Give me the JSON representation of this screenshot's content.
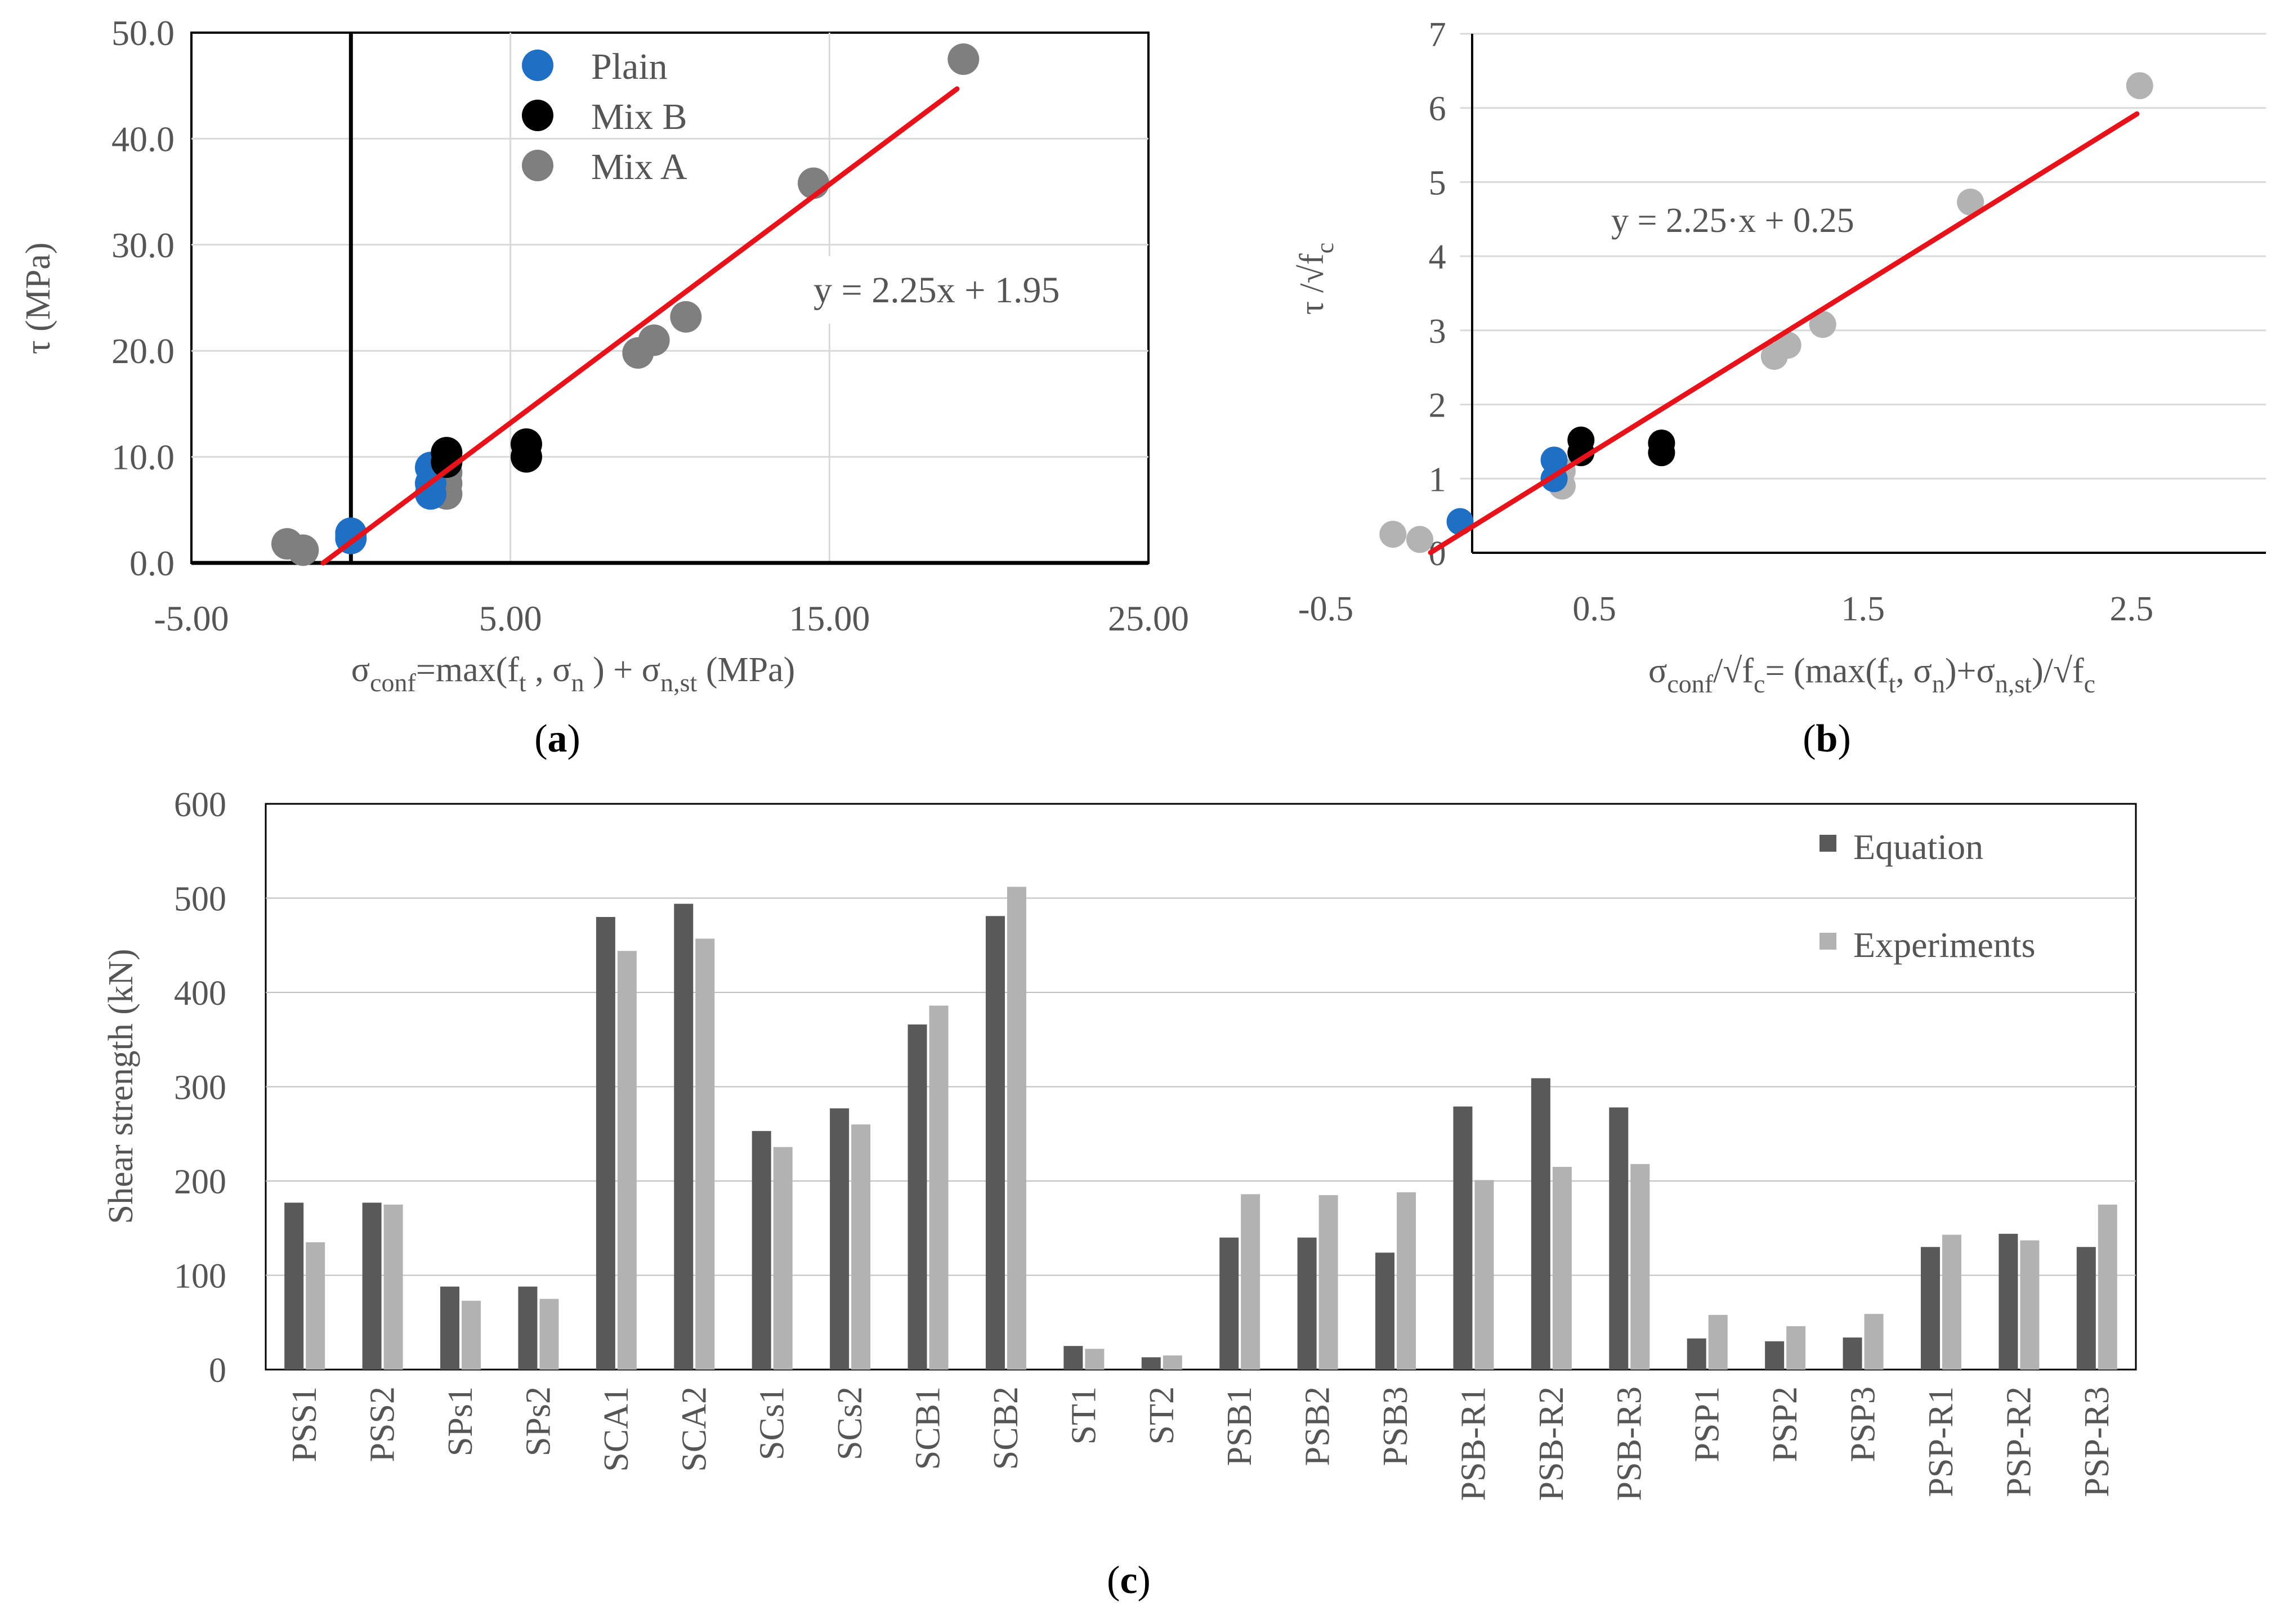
{
  "chart_data": [
    {
      "type": "scatter",
      "panel_label": "a",
      "xlim": [
        -5,
        25
      ],
      "ylim": [
        0,
        50
      ],
      "x_ticks": [
        "-5.00",
        "5.00",
        "15.00",
        "25.00"
      ],
      "y_ticks": [
        "0.0",
        "10.0",
        "20.0",
        "30.0",
        "40.0",
        "50.0"
      ],
      "ylabel": "τ (MPa)",
      "xlabel": {
        "sigma": "σ",
        "conf": "conf",
        "text1": "=max(f",
        "t": "t",
        "text2": " , σ",
        "n": "n",
        "text3": " ) + σ",
        "nst": "n,st",
        "text4": "  (MPa)"
      },
      "grid": true,
      "series": [
        {
          "name": "Plain",
          "color": "#1f6fc5",
          "points": [
            [
              0.0,
              2.8
            ],
            [
              0.0,
              2.3
            ],
            [
              2.5,
              9.0
            ],
            [
              2.5,
              7.5
            ],
            [
              2.5,
              6.5
            ]
          ]
        },
        {
          "name": "Mix B",
          "color": "#000000",
          "points": [
            [
              3.0,
              10.4
            ],
            [
              3.0,
              9.5
            ],
            [
              5.5,
              11.2
            ],
            [
              5.5,
              10.0
            ]
          ]
        },
        {
          "name": "Mix A",
          "color": "#7f7f7f",
          "points": [
            [
              -2.0,
              1.8
            ],
            [
              -1.5,
              1.2
            ],
            [
              3.0,
              8.5
            ],
            [
              3.0,
              7.5
            ],
            [
              3.0,
              6.5
            ],
            [
              9.0,
              19.8
            ],
            [
              9.5,
              21.0
            ],
            [
              10.5,
              23.2
            ],
            [
              14.5,
              35.8
            ],
            [
              19.2,
              47.5
            ]
          ]
        }
      ],
      "fit": {
        "slope": 2.25,
        "intercept": 1.95,
        "x_from": -0.87,
        "x_to": 19.0,
        "color": "#e8121b",
        "label": "y = 2.25x + 1.95"
      }
    },
    {
      "type": "scatter",
      "panel_label": "b",
      "xlim": [
        -0.5,
        3.0
      ],
      "ylim": [
        0,
        7
      ],
      "x_ticks": [
        "-0.5",
        "0.5",
        "1.5",
        "2.5"
      ],
      "y_ticks": [
        "0",
        "1",
        "2",
        "3",
        "4",
        "5",
        "6",
        "7"
      ],
      "ylabel": {
        "main": "τ /√f",
        "sub": "c"
      },
      "xlabel": {
        "sigma": "σ",
        "conf": "conf",
        "text1": "/√f",
        "c1": "c",
        "text2": "= (max(f",
        "t": "t",
        "text3": ", σ",
        "n": "n",
        "text4": ")+σ",
        "nst": "n,st",
        "text5": ")/√f",
        "c2": "c"
      },
      "grid": true,
      "series": [
        {
          "name": "Plain",
          "color": "#1f6fc5",
          "points": [
            [
              0.0,
              0.42
            ],
            [
              0.35,
              1.25
            ],
            [
              0.35,
              1.0
            ]
          ]
        },
        {
          "name": "Mix B",
          "color": "#000000",
          "points": [
            [
              0.45,
              1.52
            ],
            [
              0.45,
              1.35
            ],
            [
              0.75,
              1.48
            ],
            [
              0.75,
              1.35
            ]
          ]
        },
        {
          "name": "Mix A",
          "color": "#b3b3b3",
          "points": [
            [
              -0.25,
              0.25
            ],
            [
              -0.15,
              0.18
            ],
            [
              0.38,
              1.1
            ],
            [
              0.38,
              0.9
            ],
            [
              1.17,
              2.65
            ],
            [
              1.22,
              2.8
            ],
            [
              1.35,
              3.08
            ],
            [
              1.9,
              4.73
            ],
            [
              2.53,
              6.3
            ]
          ]
        }
      ],
      "fit": {
        "slope": 2.25,
        "intercept": 0.25,
        "x_from": -0.11,
        "x_to": 2.52,
        "color": "#e8121b",
        "label": "y = 2.25·x + 0.25"
      }
    },
    {
      "type": "bar",
      "panel_label": "c",
      "categories": [
        "PSS1",
        "PSS2",
        "SPs1",
        "SPs2",
        "SCA1",
        "SCA2",
        "SCs1",
        "SCs2",
        "SCB1",
        "SCB2",
        "ST1",
        "ST2",
        "PSB1",
        "PSB2",
        "PSB3",
        "PSB-R1",
        "PSB-R2",
        "PSB-R3",
        "PSP1",
        "PSP2",
        "PSP3",
        "PSP-R1",
        "PSP-R2",
        "PSP-R3"
      ],
      "ylim": [
        0,
        600
      ],
      "y_ticks": [
        "0",
        "100",
        "200",
        "300",
        "400",
        "500",
        "600"
      ],
      "ylabel": "Shear strength (kN)",
      "xlabel": "",
      "legend_position": "top-right",
      "series": [
        {
          "name": "Equation",
          "color": "#595959",
          "values": [
            177,
            177,
            88,
            88,
            480,
            494,
            253,
            277,
            366,
            481,
            25,
            13,
            140,
            140,
            124,
            279,
            309,
            278,
            33,
            30,
            34,
            130,
            144,
            130
          ]
        },
        {
          "name": "Experiments",
          "color": "#b2b2b2",
          "values": [
            135,
            175,
            73,
            75,
            444,
            457,
            236,
            260,
            386,
            512,
            22,
            15,
            186,
            185,
            188,
            201,
            215,
            218,
            58,
            46,
            59,
            143,
            137,
            175
          ]
        }
      ]
    }
  ],
  "captions": {
    "a": "a",
    "b": "b",
    "c": "c"
  }
}
